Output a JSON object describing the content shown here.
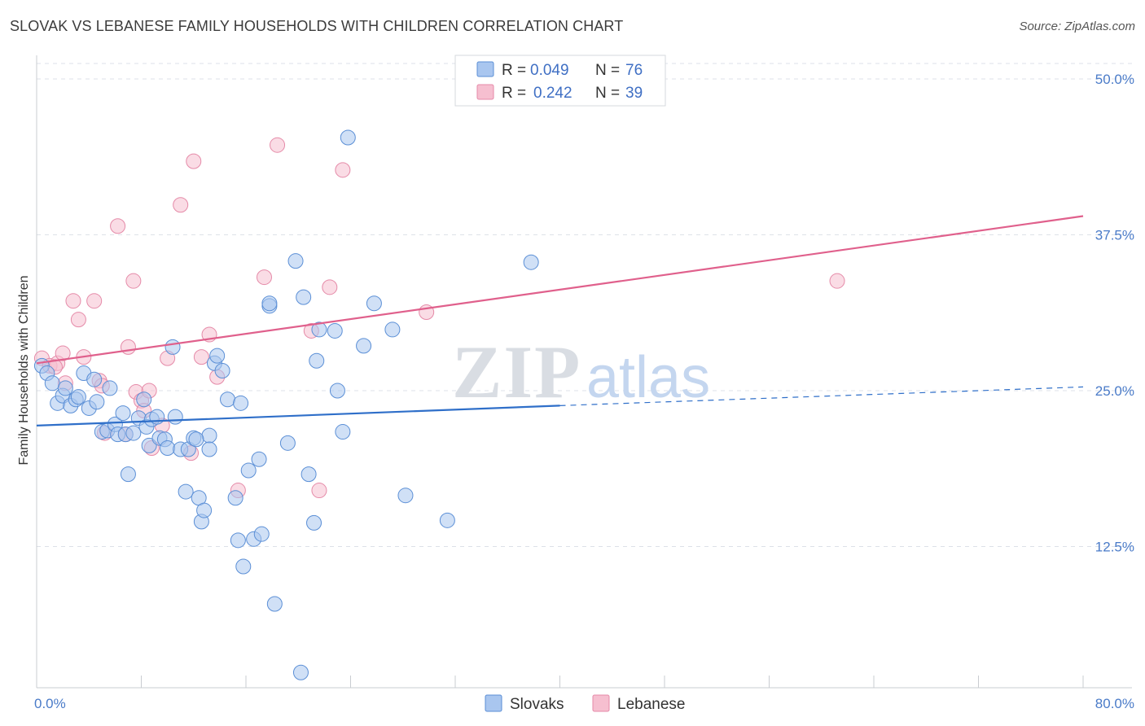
{
  "title": "SLOVAK VS LEBANESE FAMILY HOUSEHOLDS WITH CHILDREN CORRELATION CHART",
  "source": "Source: ZipAtlas.com",
  "watermark": {
    "zip": "ZIP",
    "atlas": "atlas"
  },
  "legend": {
    "slovaks": {
      "r_label": "R =",
      "r_value": "0.049",
      "n_label": "N =",
      "n_value": "76"
    },
    "lebanese": {
      "r_label": "R =",
      "r_value": "0.242",
      "n_label": "N =",
      "n_value": "39"
    }
  },
  "bottom_legend": {
    "slovaks": "Slovaks",
    "lebanese": "Lebanese"
  },
  "colors": {
    "slovaks_fill": "#a9c6ef",
    "slovaks_stroke": "#5b8fd6",
    "slovaks_line": "#2f6fc9",
    "lebanese_fill": "#f6bfd0",
    "lebanese_stroke": "#e58aa8",
    "lebanese_line": "#e0608c",
    "grid": "#dde1e8",
    "axis_label": "#4a7bc8"
  },
  "chart_data": {
    "type": "scatter",
    "title": "SLOVAK VS LEBANESE FAMILY HOUSEHOLDS WITH CHILDREN CORRELATION CHART",
    "xlabel": "",
    "ylabel": "Family Households with Children",
    "xlim": [
      0,
      80
    ],
    "ylim": [
      0,
      50
    ],
    "x_tick_labels": [
      "0.0%",
      "80.0%"
    ],
    "y_ticks": [
      12.5,
      25.0,
      37.5,
      50.0
    ],
    "y_tick_labels": [
      "12.5%",
      "25.0%",
      "37.5%",
      "50.0%"
    ],
    "grid": true,
    "series": [
      {
        "name": "Slovaks",
        "R": 0.049,
        "N": 76,
        "trend": {
          "x0": 0,
          "y0": 22.2,
          "x1": 40,
          "y1": 23.8,
          "dashed_to_x": 80,
          "dashed_to_y": 25.3
        },
        "points": [
          [
            0.4,
            27.0
          ],
          [
            0.8,
            26.4
          ],
          [
            1.2,
            25.6
          ],
          [
            1.6,
            24.0
          ],
          [
            2.0,
            24.6
          ],
          [
            2.2,
            25.2
          ],
          [
            2.6,
            23.8
          ],
          [
            3.0,
            24.3
          ],
          [
            3.2,
            24.5
          ],
          [
            3.6,
            26.4
          ],
          [
            4.0,
            23.6
          ],
          [
            4.4,
            25.9
          ],
          [
            4.6,
            24.1
          ],
          [
            5.0,
            21.7
          ],
          [
            5.4,
            21.8
          ],
          [
            5.6,
            25.2
          ],
          [
            6.0,
            22.3
          ],
          [
            6.2,
            21.5
          ],
          [
            6.6,
            23.2
          ],
          [
            6.8,
            21.5
          ],
          [
            7.0,
            18.3
          ],
          [
            7.4,
            21.6
          ],
          [
            7.8,
            22.8
          ],
          [
            8.2,
            24.3
          ],
          [
            8.4,
            22.1
          ],
          [
            8.6,
            20.6
          ],
          [
            8.8,
            22.7
          ],
          [
            9.4,
            21.2
          ],
          [
            9.8,
            21.1
          ],
          [
            10.0,
            20.4
          ],
          [
            10.4,
            28.5
          ],
          [
            10.6,
            22.9
          ],
          [
            11.0,
            20.3
          ],
          [
            11.4,
            16.9
          ],
          [
            11.6,
            20.3
          ],
          [
            12.0,
            21.2
          ],
          [
            12.4,
            16.4
          ],
          [
            12.6,
            14.5
          ],
          [
            12.8,
            15.4
          ],
          [
            13.2,
            21.4
          ],
          [
            13.6,
            27.2
          ],
          [
            13.8,
            27.8
          ],
          [
            14.2,
            26.6
          ],
          [
            14.6,
            24.3
          ],
          [
            15.2,
            16.4
          ],
          [
            15.4,
            13.0
          ],
          [
            15.6,
            24.0
          ],
          [
            15.8,
            10.9
          ],
          [
            16.2,
            18.6
          ],
          [
            16.6,
            13.1
          ],
          [
            17.0,
            19.5
          ],
          [
            17.2,
            13.5
          ],
          [
            17.8,
            31.8
          ],
          [
            18.2,
            7.9
          ],
          [
            19.2,
            20.8
          ],
          [
            19.8,
            35.4
          ],
          [
            20.2,
            2.4
          ],
          [
            20.4,
            32.5
          ],
          [
            20.8,
            18.3
          ],
          [
            21.2,
            14.4
          ],
          [
            21.4,
            27.4
          ],
          [
            23.0,
            25.0
          ],
          [
            23.4,
            21.7
          ],
          [
            25.0,
            28.6
          ],
          [
            28.2,
            16.6
          ],
          [
            31.4,
            14.6
          ],
          [
            37.8,
            35.3
          ],
          [
            23.8,
            45.3
          ],
          [
            21.6,
            29.9
          ],
          [
            22.8,
            29.8
          ],
          [
            25.8,
            32.0
          ],
          [
            27.2,
            29.9
          ],
          [
            17.8,
            32.0
          ],
          [
            9.2,
            22.9
          ],
          [
            12.2,
            21.1
          ],
          [
            13.2,
            20.3
          ]
        ]
      },
      {
        "name": "Lebanese",
        "R": 0.242,
        "N": 39,
        "trend": {
          "x0": 0,
          "y0": 27.2,
          "x1": 80,
          "y1": 39.0
        },
        "points": [
          [
            0.4,
            27.6
          ],
          [
            1.0,
            27.0
          ],
          [
            1.6,
            27.2
          ],
          [
            2.0,
            28.0
          ],
          [
            2.2,
            25.6
          ],
          [
            2.8,
            32.2
          ],
          [
            3.2,
            30.7
          ],
          [
            3.6,
            27.7
          ],
          [
            4.4,
            32.2
          ],
          [
            4.8,
            25.8
          ],
          [
            5.0,
            25.4
          ],
          [
            5.2,
            21.6
          ],
          [
            6.2,
            38.2
          ],
          [
            6.8,
            21.5
          ],
          [
            7.0,
            28.5
          ],
          [
            7.4,
            33.8
          ],
          [
            7.6,
            24.9
          ],
          [
            8.0,
            24.2
          ],
          [
            8.2,
            23.4
          ],
          [
            8.6,
            25.0
          ],
          [
            8.8,
            20.4
          ],
          [
            9.6,
            22.2
          ],
          [
            10.0,
            27.6
          ],
          [
            11.0,
            39.9
          ],
          [
            11.8,
            20.0
          ],
          [
            12.0,
            43.4
          ],
          [
            12.6,
            27.7
          ],
          [
            13.2,
            29.5
          ],
          [
            13.8,
            26.1
          ],
          [
            15.4,
            17.0
          ],
          [
            17.4,
            34.1
          ],
          [
            18.4,
            44.7
          ],
          [
            21.0,
            29.8
          ],
          [
            21.6,
            17.0
          ],
          [
            22.4,
            33.3
          ],
          [
            23.4,
            42.7
          ],
          [
            29.8,
            31.3
          ],
          [
            61.2,
            33.8
          ],
          [
            1.4,
            26.9
          ]
        ]
      }
    ]
  }
}
